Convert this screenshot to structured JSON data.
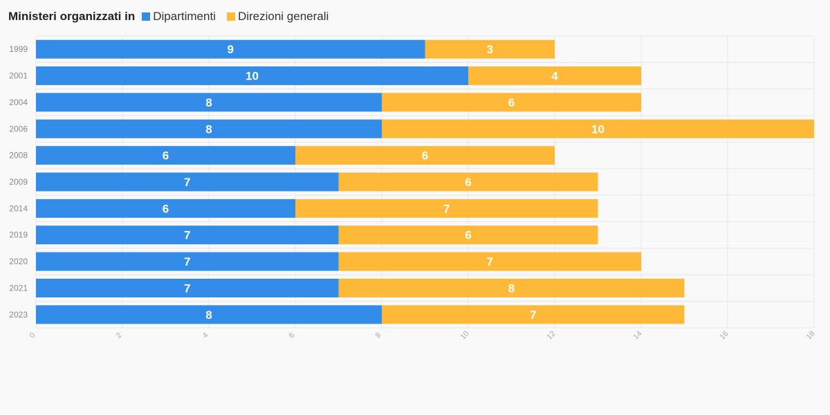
{
  "legend": {
    "title": "Ministeri organizzati in",
    "items": [
      {
        "label": "Dipartimenti",
        "color": "#328ce8"
      },
      {
        "label": "Direzioni generali",
        "color": "#feb938"
      }
    ]
  },
  "chart_data": {
    "type": "bar",
    "orientation": "horizontal",
    "stacked": true,
    "title": "Ministeri organizzati in",
    "categories": [
      "1999",
      "2001",
      "2004",
      "2006",
      "2008",
      "2009",
      "2014",
      "2019",
      "2020",
      "2021",
      "2023"
    ],
    "series": [
      {
        "name": "Dipartimenti",
        "color": "#328ce8",
        "values": [
          9,
          10,
          8,
          8,
          6,
          7,
          6,
          7,
          7,
          7,
          8
        ]
      },
      {
        "name": "Direzioni generali",
        "color": "#feb938",
        "values": [
          3,
          4,
          6,
          10,
          6,
          6,
          7,
          6,
          7,
          8,
          7
        ]
      }
    ],
    "xlim": [
      0,
      18
    ],
    "xticks": [
      0,
      2,
      4,
      6,
      8,
      10,
      12,
      14,
      16,
      18
    ],
    "xlabel": "",
    "ylabel": "",
    "grid": true,
    "legend_position": "top-left",
    "data_labels": true
  }
}
